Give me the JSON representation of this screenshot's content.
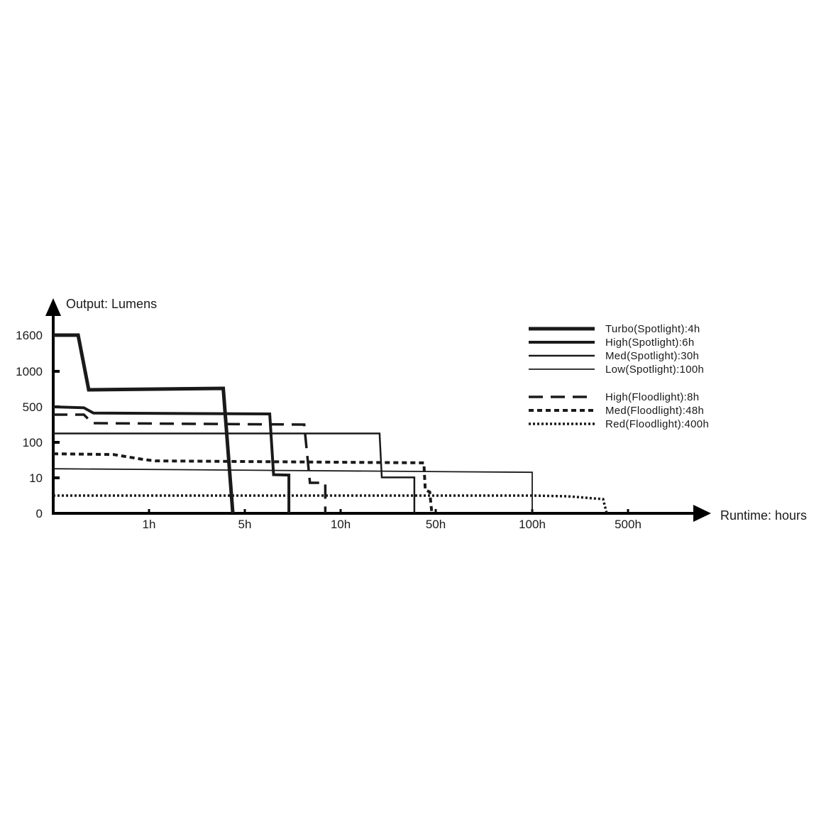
{
  "chart_data": {
    "type": "line",
    "title": "",
    "xlabel": "Runtime: hours",
    "ylabel": "Output: Lumens",
    "x_ticks": [
      {
        "value": 1,
        "label": "1h"
      },
      {
        "value": 5,
        "label": "5h"
      },
      {
        "value": 10,
        "label": "10h"
      },
      {
        "value": 50,
        "label": "50h"
      },
      {
        "value": 100,
        "label": "100h"
      },
      {
        "value": 500,
        "label": "500h"
      }
    ],
    "y_ticks": [
      {
        "value": 0,
        "label": "0"
      },
      {
        "value": 10,
        "label": "10"
      },
      {
        "value": 100,
        "label": "100"
      },
      {
        "value": 500,
        "label": "500"
      },
      {
        "value": 1000,
        "label": "1000"
      },
      {
        "value": 1600,
        "label": "1600"
      }
    ],
    "x_scale": "non-uniform (equally spaced ticks: 0, 1h, 5h, 10h, 50h, 100h, 500h)",
    "y_scale": "non-uniform (equally spaced ticks: 0, 10, 100, 500, 1000, 1600)",
    "grid": false,
    "legend_position": "top-right",
    "color": "#1a1a1a",
    "series": [
      {
        "name": "Turbo(Spotlight):4h",
        "style": "solid-thick",
        "x": [
          0,
          0.26,
          0.37,
          4.1,
          4.5
        ],
        "y": [
          1600,
          1600,
          740,
          760,
          0
        ]
      },
      {
        "name": "High(Spotlight):6h",
        "style": "solid-bold",
        "x": [
          0,
          0.32,
          0.42,
          6.3,
          6.5,
          7.3,
          7.3
        ],
        "y": [
          500,
          490,
          430,
          420,
          18,
          17,
          0
        ]
      },
      {
        "name": "Med(Spotlight):30h",
        "style": "solid",
        "x": [
          0,
          26.4,
          27.3,
          41,
          41
        ],
        "y": [
          200,
          200,
          11,
          11,
          0
        ]
      },
      {
        "name": "Low(Spotlight):100h",
        "style": "solid-thin",
        "x": [
          0,
          100,
          100
        ],
        "y": [
          33,
          24,
          0
        ]
      },
      {
        "name": "High(Floodlight):8h",
        "style": "long-dash",
        "x": [
          0,
          0.32,
          0.41,
          8.1,
          8.4,
          9.2,
          9.2
        ],
        "y": [
          412,
          412,
          316,
          300,
          8.6,
          8.6,
          0
        ]
      },
      {
        "name": "Med(Floodlight):48h",
        "style": "short-dash",
        "x": [
          0,
          0.63,
          0.93,
          1.25,
          45,
          45.6,
          47.5,
          48.4
        ],
        "y": [
          71,
          69,
          57,
          53,
          48,
          6.6,
          6,
          0
        ]
      },
      {
        "name": "Red(Floodlight):400h",
        "style": "dotted",
        "x": [
          0,
          100,
          248,
          396,
          411
        ],
        "y": [
          5,
          5,
          4.8,
          4,
          0
        ]
      }
    ]
  }
}
